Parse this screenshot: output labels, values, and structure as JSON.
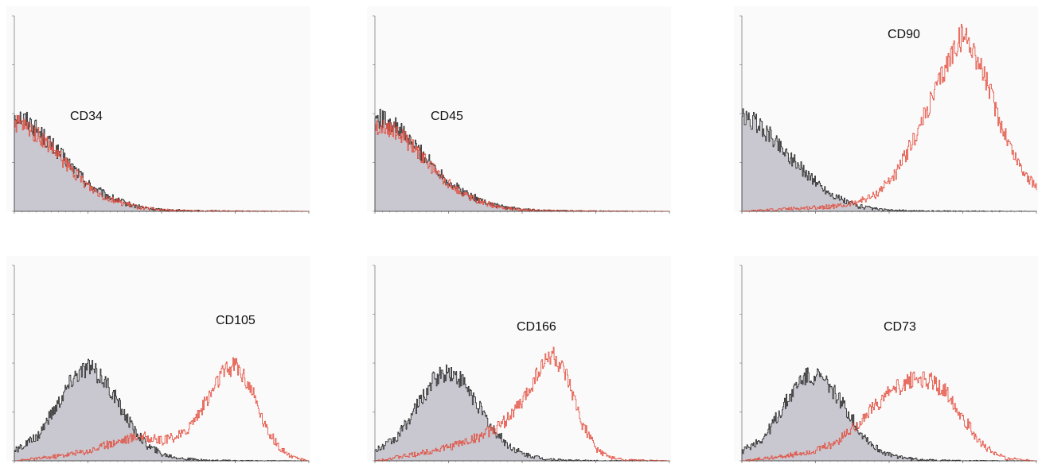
{
  "colors": {
    "control_fill": "#c9c7cf",
    "control_line": "#222222",
    "stained_line": "#e34a3a",
    "axis": "#555555",
    "panel_background": "#fafafa"
  },
  "chart_data": [
    {
      "type": "area",
      "marker": "CD34",
      "label_position": "upper-left",
      "x_scale": "log",
      "xlim": [
        0,
        4
      ],
      "ylim": [
        0,
        1
      ],
      "x_ticks": [
        0,
        1,
        2,
        3,
        4
      ],
      "grid": false,
      "series": [
        {
          "role": "control",
          "style": "filled-grey",
          "x": [
            0,
            0.2,
            0.4,
            0.6,
            0.8,
            1.0,
            1.2,
            1.4,
            1.6,
            1.8,
            2.0,
            2.4,
            3.0,
            4.0
          ],
          "y": [
            0.5,
            0.46,
            0.38,
            0.3,
            0.22,
            0.14,
            0.09,
            0.055,
            0.03,
            0.015,
            0.008,
            0.003,
            0.001,
            0
          ]
        },
        {
          "role": "stained",
          "style": "red-line",
          "x": [
            0,
            0.2,
            0.4,
            0.6,
            0.8,
            1.0,
            1.2,
            1.4,
            1.6,
            1.8,
            2.0,
            2.4,
            3.0,
            4.0
          ],
          "y": [
            0.45,
            0.42,
            0.36,
            0.28,
            0.2,
            0.13,
            0.08,
            0.05,
            0.028,
            0.014,
            0.007,
            0.003,
            0.001,
            0
          ]
        }
      ]
    },
    {
      "type": "area",
      "marker": "CD45",
      "label_position": "upper-left",
      "x_scale": "log",
      "xlim": [
        0,
        4
      ],
      "ylim": [
        0,
        1
      ],
      "x_ticks": [
        0,
        1,
        2,
        3,
        4
      ],
      "grid": false,
      "series": [
        {
          "role": "control",
          "style": "filled-grey",
          "x": [
            0,
            0.2,
            0.4,
            0.6,
            0.8,
            1.0,
            1.2,
            1.4,
            1.6,
            1.8,
            2.0,
            2.4,
            3.0,
            4.0
          ],
          "y": [
            0.48,
            0.46,
            0.39,
            0.31,
            0.23,
            0.15,
            0.1,
            0.06,
            0.035,
            0.018,
            0.009,
            0.003,
            0.001,
            0
          ]
        },
        {
          "role": "stained",
          "style": "red-line",
          "x": [
            0,
            0.2,
            0.4,
            0.6,
            0.8,
            1.0,
            1.2,
            1.4,
            1.6,
            1.8,
            2.0,
            2.4,
            3.0,
            4.0
          ],
          "y": [
            0.44,
            0.43,
            0.37,
            0.29,
            0.21,
            0.14,
            0.09,
            0.055,
            0.03,
            0.015,
            0.008,
            0.003,
            0.001,
            0
          ]
        }
      ]
    },
    {
      "type": "area",
      "marker": "CD90",
      "label_position": "top-right",
      "x_scale": "log",
      "xlim": [
        0,
        4
      ],
      "ylim": [
        0,
        1
      ],
      "x_ticks": [
        0,
        1,
        2,
        3,
        4
      ],
      "grid": false,
      "series": [
        {
          "role": "control",
          "style": "filled-grey",
          "x": [
            0,
            0.2,
            0.4,
            0.6,
            0.8,
            1.0,
            1.2,
            1.4,
            1.6,
            1.8,
            2.0,
            2.4,
            3.0,
            4.0
          ],
          "y": [
            0.48,
            0.45,
            0.38,
            0.3,
            0.22,
            0.15,
            0.09,
            0.05,
            0.025,
            0.012,
            0.005,
            0.002,
            0.001,
            0
          ]
        },
        {
          "role": "stained",
          "style": "red-line",
          "x": [
            0,
            0.5,
            1.0,
            1.4,
            1.8,
            2.1,
            2.4,
            2.7,
            2.9,
            3.0,
            3.1,
            3.3,
            3.5,
            3.7,
            3.9,
            4.0
          ],
          "y": [
            0.0,
            0.01,
            0.02,
            0.03,
            0.08,
            0.2,
            0.42,
            0.68,
            0.85,
            0.9,
            0.86,
            0.68,
            0.46,
            0.28,
            0.16,
            0.12
          ]
        }
      ]
    },
    {
      "type": "area",
      "marker": "CD105",
      "label_position": "upper-right",
      "x_scale": "log",
      "xlim": [
        0,
        4
      ],
      "ylim": [
        0,
        1
      ],
      "x_ticks": [
        0,
        1,
        2,
        3,
        4
      ],
      "grid": false,
      "series": [
        {
          "role": "control",
          "style": "filled-grey",
          "x": [
            0,
            0.3,
            0.6,
            0.8,
            1.0,
            1.2,
            1.4,
            1.6,
            1.8,
            2.0,
            2.3,
            2.6,
            3.0,
            4.0
          ],
          "y": [
            0.05,
            0.12,
            0.3,
            0.43,
            0.48,
            0.42,
            0.3,
            0.17,
            0.08,
            0.035,
            0.01,
            0.003,
            0.001,
            0
          ]
        },
        {
          "role": "stained",
          "style": "red-line",
          "x": [
            0,
            0.5,
            1.0,
            1.4,
            1.7,
            2.0,
            2.3,
            2.6,
            2.8,
            3.0,
            3.2,
            3.4,
            3.6,
            3.8,
            4.0
          ],
          "y": [
            0.0,
            0.02,
            0.05,
            0.1,
            0.13,
            0.1,
            0.14,
            0.3,
            0.44,
            0.5,
            0.38,
            0.18,
            0.06,
            0.015,
            0.0
          ]
        }
      ]
    },
    {
      "type": "area",
      "marker": "CD166",
      "label_position": "upper-middle",
      "x_scale": "log",
      "xlim": [
        0,
        4
      ],
      "ylim": [
        0,
        1
      ],
      "x_ticks": [
        0,
        1,
        2,
        3,
        4
      ],
      "grid": false,
      "series": [
        {
          "role": "control",
          "style": "filled-grey",
          "x": [
            0,
            0.3,
            0.6,
            0.8,
            1.0,
            1.2,
            1.4,
            1.6,
            1.8,
            2.0,
            2.3,
            2.6,
            3.0,
            4.0
          ],
          "y": [
            0.05,
            0.12,
            0.3,
            0.42,
            0.46,
            0.4,
            0.28,
            0.16,
            0.08,
            0.035,
            0.01,
            0.003,
            0.001,
            0
          ]
        },
        {
          "role": "stained",
          "style": "red-line",
          "x": [
            0,
            0.5,
            1.0,
            1.4,
            1.7,
            2.0,
            2.2,
            2.4,
            2.6,
            2.8,
            3.0,
            3.2,
            3.4,
            4.0
          ],
          "y": [
            0.0,
            0.03,
            0.07,
            0.12,
            0.18,
            0.3,
            0.45,
            0.55,
            0.42,
            0.2,
            0.06,
            0.015,
            0.004,
            0.0
          ]
        }
      ]
    },
    {
      "type": "area",
      "marker": "CD73",
      "label_position": "upper-middle",
      "x_scale": "log",
      "xlim": [
        0,
        4
      ],
      "ylim": [
        0,
        1
      ],
      "x_ticks": [
        0,
        1,
        2,
        3,
        4
      ],
      "grid": false,
      "series": [
        {
          "role": "control",
          "style": "filled-grey",
          "x": [
            0,
            0.3,
            0.6,
            0.8,
            1.0,
            1.2,
            1.4,
            1.6,
            1.8,
            2.0,
            2.3,
            2.6,
            3.0,
            4.0
          ],
          "y": [
            0.05,
            0.12,
            0.3,
            0.42,
            0.44,
            0.38,
            0.27,
            0.15,
            0.07,
            0.03,
            0.01,
            0.003,
            0.001,
            0
          ]
        },
        {
          "role": "stained",
          "style": "red-line",
          "x": [
            0,
            0.5,
            1.0,
            1.3,
            1.6,
            1.9,
            2.2,
            2.4,
            2.6,
            2.8,
            3.0,
            3.2,
            3.4,
            3.6,
            4.0
          ],
          "y": [
            0.0,
            0.02,
            0.05,
            0.1,
            0.2,
            0.32,
            0.4,
            0.42,
            0.4,
            0.34,
            0.22,
            0.11,
            0.04,
            0.012,
            0.0
          ]
        }
      ]
    }
  ]
}
